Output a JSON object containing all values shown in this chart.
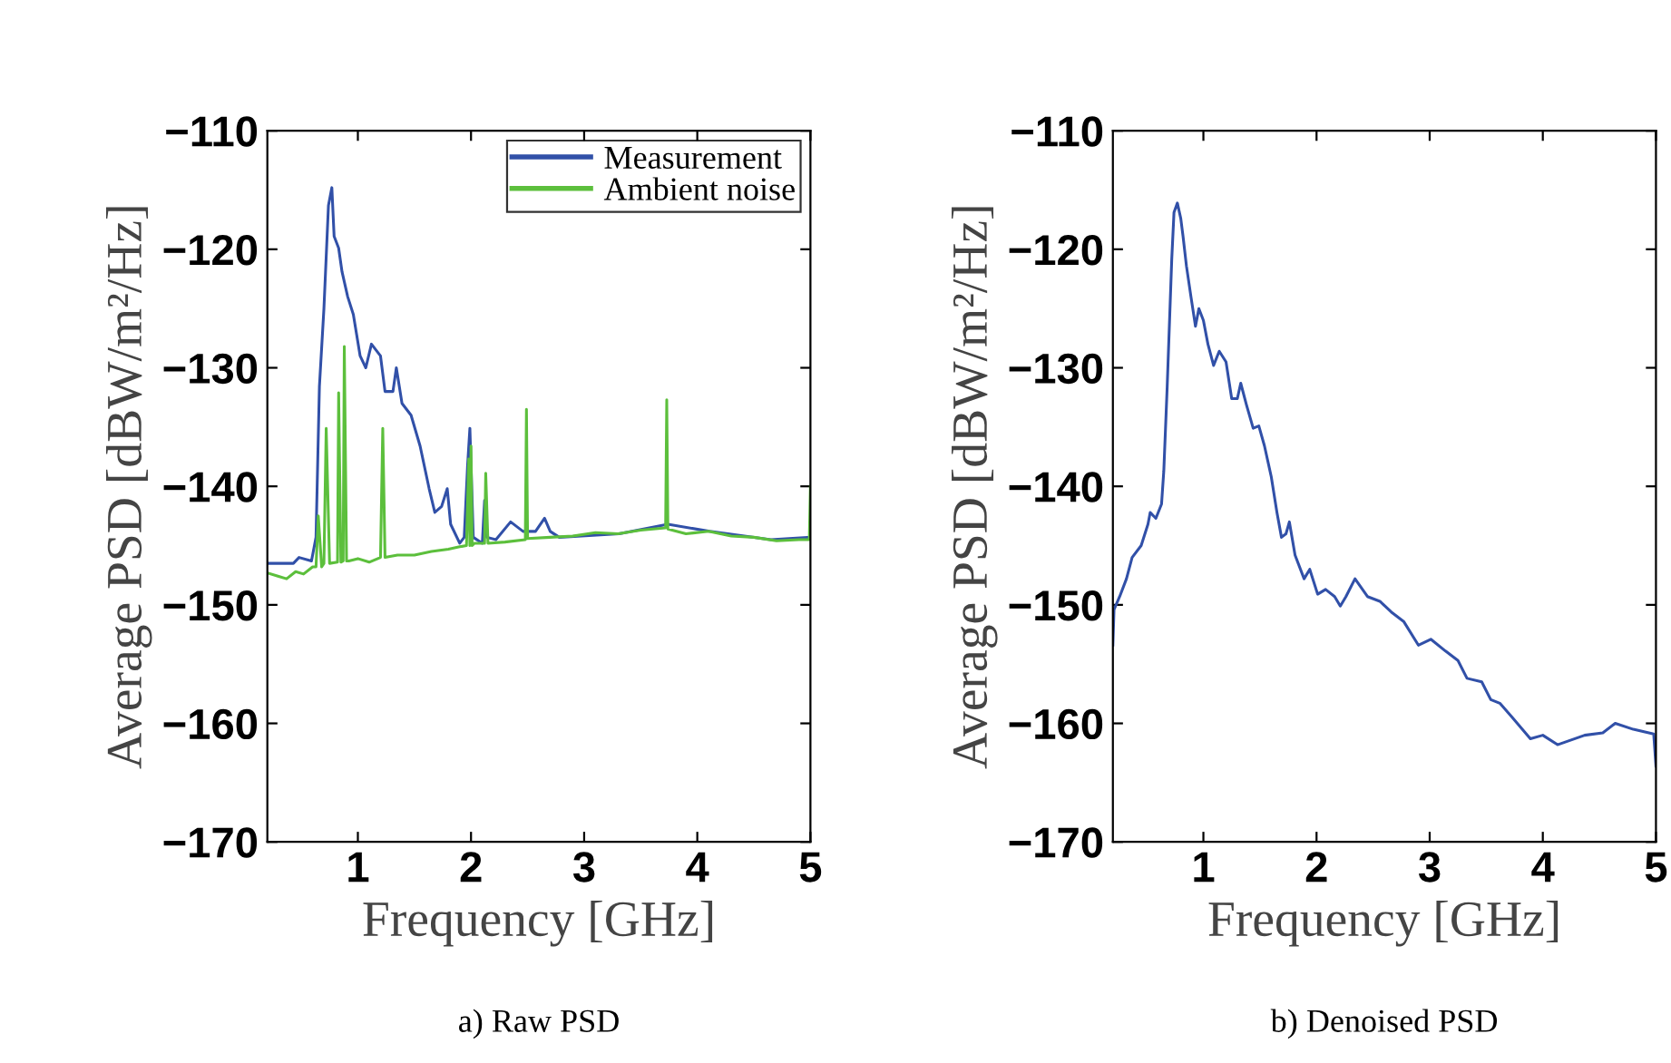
{
  "chart_data": [
    {
      "type": "line",
      "title": "a) Raw PSD",
      "xlabel": "Frequency [GHz]",
      "ylabel": "Average PSD [dBW/m²/Hz]",
      "xlim": [
        0.2,
        5
      ],
      "ylim": [
        -170,
        -110
      ],
      "xticks": [
        1,
        2,
        3,
        4,
        5
      ],
      "yticks": [
        -170,
        -160,
        -150,
        -140,
        -130,
        -120,
        -110
      ],
      "grid": false,
      "legend": "top right",
      "line_style": "solid",
      "marker": "none",
      "series": [
        {
          "name": "Measurement",
          "color": "#3150a8",
          "x": [
            0.2,
            0.43,
            0.48,
            0.59,
            0.63,
            0.66,
            0.7,
            0.74,
            0.77,
            0.79,
            0.83,
            0.86,
            0.91,
            0.96,
            1.02,
            1.07,
            1.12,
            1.2,
            1.24,
            1.31,
            1.34,
            1.39,
            1.47,
            1.55,
            1.63,
            1.68,
            1.74,
            1.79,
            1.82,
            1.9,
            1.94,
            1.97,
            1.99,
            2.02,
            2.1,
            2.12,
            2.14,
            2.22,
            2.35,
            2.46,
            2.57,
            2.65,
            2.7,
            2.78,
            3.31,
            3.74,
            4.11,
            4.65,
            5.0
          ],
          "values": [
            -146.5,
            -146.5,
            -146,
            -146.3,
            -144.3,
            -131.6,
            -125,
            -116.3,
            -114.8,
            -118.9,
            -119.9,
            -121.9,
            -124,
            -125.5,
            -129,
            -130,
            -128,
            -129,
            -132,
            -132,
            -130,
            -133,
            -134,
            -136.6,
            -140.2,
            -142.2,
            -141.7,
            -140.2,
            -143.2,
            -144.8,
            -144.3,
            -138.2,
            -135.1,
            -144.3,
            -144.8,
            -141.2,
            -144.3,
            -144.5,
            -143,
            -143.8,
            -143.8,
            -142.7,
            -143.8,
            -144.3,
            -144,
            -143.2,
            -143.8,
            -144.5,
            -144.3
          ]
        },
        {
          "name": "Ambient noise",
          "color": "#5cbf3c",
          "x": [
            0.2,
            0.3,
            0.37,
            0.45,
            0.52,
            0.6,
            0.63,
            0.65,
            0.68,
            0.7,
            0.72,
            0.75,
            0.82,
            0.83,
            0.85,
            0.87,
            0.88,
            0.9,
            0.92,
            1.0,
            1.1,
            1.2,
            1.22,
            1.24,
            1.35,
            1.5,
            1.65,
            1.8,
            1.9,
            1.96,
            1.98,
            1.99,
            2.0,
            2.01,
            2.03,
            2.12,
            2.13,
            2.15,
            2.3,
            2.48,
            2.49,
            2.5,
            2.7,
            2.9,
            3.1,
            3.3,
            3.5,
            3.72,
            3.73,
            3.74,
            3.9,
            4.1,
            4.3,
            4.5,
            4.7,
            4.9,
            4.99,
            5.0
          ],
          "values": [
            -147.3,
            -147.6,
            -147.8,
            -147.2,
            -147.4,
            -146.8,
            -146.8,
            -142.5,
            -146.8,
            -146.5,
            -135.1,
            -146.5,
            -146.4,
            -132.1,
            -146.4,
            -146.3,
            -128.2,
            -146.3,
            -146.3,
            -146.1,
            -146.4,
            -146,
            -135.1,
            -146,
            -145.8,
            -145.8,
            -145.5,
            -145.3,
            -145.1,
            -145,
            -137.7,
            -145,
            -136.6,
            -145,
            -144.8,
            -144.8,
            -138.9,
            -144.8,
            -144.7,
            -144.5,
            -133.5,
            -144.4,
            -144.3,
            -144.2,
            -143.9,
            -144,
            -143.7,
            -143.5,
            -132.7,
            -143.6,
            -144,
            -143.8,
            -144.2,
            -144.3,
            -144.6,
            -144.5,
            -144.5,
            -140
          ]
        }
      ]
    },
    {
      "type": "line",
      "title": "b) Denoised PSD",
      "xlabel": "Frequency [GHz]",
      "ylabel": "Average PSD [dBW/m²/Hz]",
      "xlim": [
        0.2,
        5
      ],
      "ylim": [
        -170,
        -110
      ],
      "xticks": [
        1,
        2,
        3,
        4,
        5
      ],
      "yticks": [
        -170,
        -160,
        -150,
        -140,
        -130,
        -120,
        -110
      ],
      "grid": false,
      "line_style": "solid",
      "marker": "none",
      "series": [
        {
          "color": "#3150a8",
          "x": [
            0.2,
            0.21,
            0.26,
            0.32,
            0.37,
            0.45,
            0.51,
            0.53,
            0.58,
            0.63,
            0.65,
            0.68,
            0.72,
            0.74,
            0.77,
            0.8,
            0.82,
            0.85,
            0.89,
            0.93,
            0.96,
            1.0,
            1.04,
            1.09,
            1.14,
            1.2,
            1.25,
            1.3,
            1.33,
            1.38,
            1.44,
            1.49,
            1.54,
            1.6,
            1.65,
            1.69,
            1.73,
            1.76,
            1.81,
            1.89,
            1.94,
            2.01,
            2.08,
            2.16,
            2.21,
            2.26,
            2.34,
            2.45,
            2.56,
            2.66,
            2.77,
            2.9,
            3.01,
            3.14,
            3.25,
            3.33,
            3.46,
            3.54,
            3.62,
            3.73,
            3.89,
            4.0,
            4.13,
            4.37,
            4.53,
            4.64,
            4.8,
            4.98,
            5.0
          ],
          "values": [
            -153.4,
            -150.4,
            -149.3,
            -147.8,
            -146,
            -145,
            -143.2,
            -142.2,
            -142.7,
            -141.5,
            -138.7,
            -131.6,
            -120.9,
            -116.9,
            -116.1,
            -117.4,
            -118.9,
            -121.4,
            -124,
            -126.5,
            -125,
            -126,
            -128,
            -129.8,
            -128.6,
            -129.5,
            -132.6,
            -132.6,
            -131.3,
            -133.1,
            -135.1,
            -134.9,
            -136.6,
            -139.2,
            -142.2,
            -144.3,
            -144,
            -143,
            -145.8,
            -147.8,
            -147,
            -149.1,
            -148.7,
            -149.3,
            -150.1,
            -149.3,
            -147.8,
            -149.3,
            -149.7,
            -150.6,
            -151.4,
            -153.4,
            -152.9,
            -153.9,
            -154.7,
            -156.2,
            -156.5,
            -158,
            -158.3,
            -159.5,
            -161.3,
            -161,
            -161.8,
            -161,
            -160.8,
            -160,
            -160.5,
            -160.9,
            -163.6
          ]
        }
      ]
    }
  ]
}
